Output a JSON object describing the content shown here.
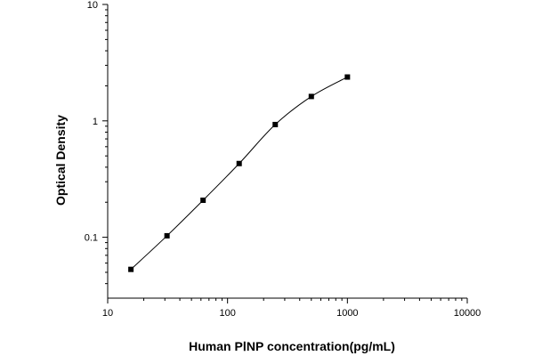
{
  "chart_data": {
    "type": "scatter",
    "title": "",
    "xlabel": "Human PⅠNP concentration(pg/mL)",
    "ylabel": "Optical Density",
    "x_scale": "log",
    "y_scale": "log",
    "xlim": [
      10,
      10000
    ],
    "ylim": [
      0.03,
      10
    ],
    "x_ticks": [
      10,
      100,
      1000,
      10000
    ],
    "x_tick_labels": [
      "10",
      "100",
      "1000",
      "10000"
    ],
    "y_ticks": [
      0.1,
      1,
      10
    ],
    "y_tick_labels": [
      "0.1",
      "1",
      "10"
    ],
    "grid": false,
    "legend": "none",
    "series": [
      {
        "x": [
          15.625,
          31.25,
          62.5,
          125,
          250,
          500,
          1000
        ],
        "y": [
          0.053,
          0.103,
          0.208,
          0.43,
          0.93,
          1.62,
          2.38
        ],
        "marker": "square",
        "fitted_curve": true
      }
    ]
  },
  "colors": {
    "axis": "#000000",
    "marker": "#000000",
    "curve": "#000000"
  }
}
